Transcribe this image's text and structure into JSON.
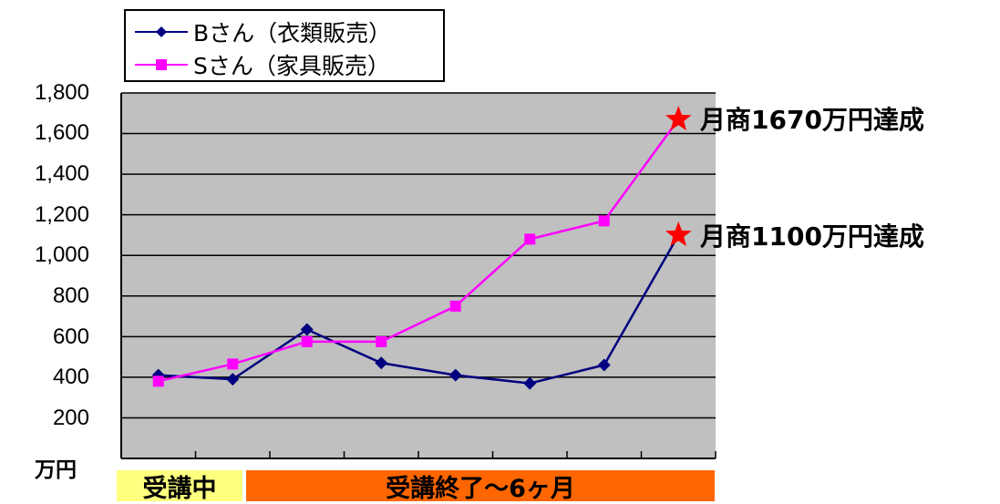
{
  "chart_data": {
    "type": "line",
    "ylim": [
      0,
      1800
    ],
    "y_ticks": [
      "1,800",
      "1,600",
      "1,400",
      "1,200",
      "1,000",
      "800",
      "600",
      "400",
      "200"
    ],
    "y_unit": "万円",
    "grid": true,
    "legend_position": "top-left",
    "x_count": 8,
    "series": [
      {
        "name": "Bさん（衣類販売）",
        "color": "#000080",
        "marker": "diamond",
        "values": [
          410,
          390,
          635,
          470,
          410,
          370,
          460,
          1100
        ]
      },
      {
        "name": "Sさん（家具販売）",
        "color": "#ff00ff",
        "marker": "square",
        "values": [
          380,
          465,
          575,
          575,
          750,
          1080,
          1170,
          1670
        ]
      }
    ],
    "annotations": [
      {
        "text": "月商1670万円達成",
        "value": 1670,
        "series": 1,
        "marker_color": "#ff0000"
      },
      {
        "text": "月商1100万円達成",
        "value": 1100,
        "series": 0,
        "marker_color": "#ff0000"
      }
    ],
    "phases": [
      {
        "label": "受講中",
        "color": "#ffff80"
      },
      {
        "label": "受講終了～6ヶ月",
        "color": "#ff6600"
      }
    ],
    "plot_background": "#c0c0c0"
  }
}
